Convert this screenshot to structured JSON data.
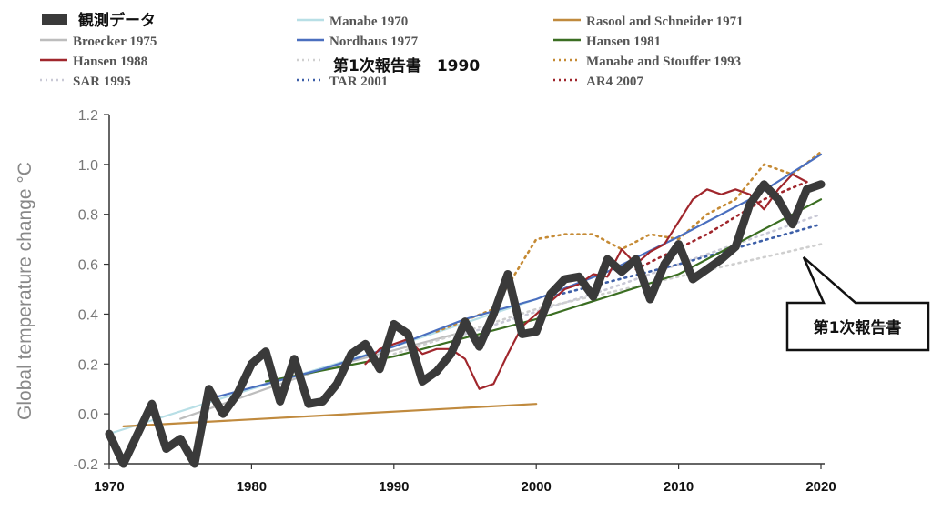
{
  "chart_data": {
    "type": "line",
    "ylabel": "Global temperature change °C",
    "xlim": [
      1970,
      2020
    ],
    "ylim": [
      -0.2,
      1.2
    ],
    "x_ticks": [
      "1970",
      "1980",
      "1990",
      "2000",
      "2010",
      "2020"
    ],
    "y_ticks": [
      "-0.2",
      "0.0",
      "0.2",
      "0.4",
      "0.6",
      "0.8",
      "1.0",
      "1.2"
    ],
    "callout": "第1次報告書",
    "series": [
      {
        "name": "観測データ",
        "color": "#3a3a3a",
        "style": "thick",
        "points": [
          [
            1970,
            -0.08
          ],
          [
            1971,
            -0.2
          ],
          [
            1972,
            -0.08
          ],
          [
            1973,
            0.04
          ],
          [
            1974,
            -0.14
          ],
          [
            1975,
            -0.1
          ],
          [
            1976,
            -0.2
          ],
          [
            1977,
            0.1
          ],
          [
            1978,
            0.0
          ],
          [
            1979,
            0.08
          ],
          [
            1980,
            0.2
          ],
          [
            1981,
            0.25
          ],
          [
            1982,
            0.05
          ],
          [
            1983,
            0.22
          ],
          [
            1984,
            0.04
          ],
          [
            1985,
            0.05
          ],
          [
            1986,
            0.12
          ],
          [
            1987,
            0.24
          ],
          [
            1988,
            0.28
          ],
          [
            1989,
            0.18
          ],
          [
            1990,
            0.36
          ],
          [
            1991,
            0.32
          ],
          [
            1992,
            0.13
          ],
          [
            1993,
            0.17
          ],
          [
            1994,
            0.24
          ],
          [
            1995,
            0.37
          ],
          [
            1996,
            0.27
          ],
          [
            1997,
            0.4
          ],
          [
            1998,
            0.56
          ],
          [
            1999,
            0.32
          ],
          [
            2000,
            0.33
          ],
          [
            2001,
            0.48
          ],
          [
            2002,
            0.54
          ],
          [
            2003,
            0.55
          ],
          [
            2004,
            0.47
          ],
          [
            2005,
            0.62
          ],
          [
            2006,
            0.57
          ],
          [
            2007,
            0.62
          ],
          [
            2008,
            0.46
          ],
          [
            2009,
            0.6
          ],
          [
            2010,
            0.68
          ],
          [
            2011,
            0.54
          ],
          [
            2012,
            0.58
          ],
          [
            2013,
            0.62
          ],
          [
            2014,
            0.67
          ],
          [
            2015,
            0.84
          ],
          [
            2016,
            0.92
          ],
          [
            2017,
            0.86
          ],
          [
            2018,
            0.76
          ],
          [
            2019,
            0.9
          ],
          [
            2020,
            0.92
          ]
        ]
      },
      {
        "name": "Broecker 1975",
        "color": "#bdbdbd",
        "style": "solid",
        "points": [
          [
            1975,
            -0.02
          ],
          [
            1985,
            0.18
          ],
          [
            1995,
            0.33
          ]
        ]
      },
      {
        "name": "Hansen 1988",
        "color": "#a0262c",
        "style": "solid",
        "points": [
          [
            1988,
            0.2
          ],
          [
            1989,
            0.26
          ],
          [
            1990,
            0.28
          ],
          [
            1991,
            0.3
          ],
          [
            1992,
            0.24
          ],
          [
            1993,
            0.26
          ],
          [
            1994,
            0.26
          ],
          [
            1995,
            0.22
          ],
          [
            1996,
            0.1
          ],
          [
            1997,
            0.12
          ],
          [
            1998,
            0.24
          ],
          [
            1999,
            0.35
          ],
          [
            2000,
            0.4
          ],
          [
            2001,
            0.45
          ],
          [
            2002,
            0.5
          ],
          [
            2003,
            0.52
          ],
          [
            2004,
            0.56
          ],
          [
            2005,
            0.55
          ],
          [
            2006,
            0.66
          ],
          [
            2007,
            0.6
          ],
          [
            2008,
            0.65
          ],
          [
            2009,
            0.68
          ],
          [
            2010,
            0.77
          ],
          [
            2011,
            0.86
          ],
          [
            2012,
            0.9
          ],
          [
            2013,
            0.88
          ],
          [
            2014,
            0.9
          ],
          [
            2015,
            0.88
          ],
          [
            2016,
            0.82
          ],
          [
            2017,
            0.9
          ],
          [
            2018,
            0.96
          ],
          [
            2019,
            0.93
          ]
        ]
      },
      {
        "name": "SAR 1995",
        "color": "#c9c9d6",
        "style": "dotted",
        "points": [
          [
            1995,
            0.32
          ],
          [
            2005,
            0.5
          ],
          [
            2020,
            0.8
          ]
        ]
      },
      {
        "name": "Manabe 1970",
        "color": "#b8dfe6",
        "style": "solid",
        "points": [
          [
            1970,
            -0.08
          ],
          [
            1980,
            0.1
          ],
          [
            1990,
            0.27
          ],
          [
            2000,
            0.46
          ]
        ]
      },
      {
        "name": "Nordhaus 1977",
        "color": "#4a6fbf",
        "style": "solid",
        "points": [
          [
            1977,
            0.06
          ],
          [
            1985,
            0.18
          ],
          [
            1990,
            0.27
          ],
          [
            1995,
            0.38
          ],
          [
            2000,
            0.46
          ],
          [
            2005,
            0.57
          ],
          [
            2010,
            0.71
          ],
          [
            2015,
            0.86
          ],
          [
            2020,
            1.04
          ]
        ]
      },
      {
        "name": "第1次報告書",
        "color": "#cfcfcf",
        "style": "dotted",
        "points": [
          [
            1990,
            0.24
          ],
          [
            2000,
            0.42
          ],
          [
            2010,
            0.55
          ],
          [
            2020,
            0.68
          ]
        ]
      },
      {
        "name": "TAR 2001",
        "color": "#3d5fa8",
        "style": "dotted",
        "points": [
          [
            2001,
            0.47
          ],
          [
            2010,
            0.6
          ],
          [
            2020,
            0.76
          ]
        ]
      },
      {
        "name": "Rasool and Schneider 1971",
        "color": "#c08a3e",
        "style": "solid",
        "points": [
          [
            1971,
            -0.05
          ],
          [
            2000,
            0.04
          ]
        ]
      },
      {
        "name": "Hansen 1981",
        "color": "#3b6e22",
        "style": "solid",
        "points": [
          [
            1981,
            0.13
          ],
          [
            1990,
            0.23
          ],
          [
            2000,
            0.38
          ],
          [
            2010,
            0.56
          ],
          [
            2020,
            0.86
          ]
        ]
      },
      {
        "name": "Manabe and Stouffer 1993",
        "color": "#c58a34",
        "style": "dotted",
        "points": [
          [
            1993,
            0.33
          ],
          [
            1997,
            0.42
          ],
          [
            2000,
            0.7
          ],
          [
            2002,
            0.72
          ],
          [
            2004,
            0.72
          ],
          [
            2006,
            0.66
          ],
          [
            2008,
            0.72
          ],
          [
            2010,
            0.7
          ],
          [
            2012,
            0.8
          ],
          [
            2014,
            0.86
          ],
          [
            2016,
            1.0
          ],
          [
            2018,
            0.96
          ],
          [
            2020,
            1.05
          ]
        ]
      },
      {
        "name": "AR4 2007",
        "color": "#a0262c",
        "style": "dotted",
        "points": [
          [
            2007,
            0.58
          ],
          [
            2012,
            0.72
          ],
          [
            2016,
            0.86
          ],
          [
            2019,
            0.93
          ]
        ]
      }
    ]
  },
  "legend": {
    "col1": [
      "観測データ",
      "Broecker 1975",
      "Hansen 1988",
      "SAR 1995"
    ],
    "col2": [
      "Manabe 1970",
      "Nordhaus 1977",
      "第1次報告書　1990",
      "TAR 2001"
    ],
    "col3": [
      "Rasool and Schneider 1971",
      "Hansen 1981",
      "Manabe and Stouffer 1993",
      "AR4 2007"
    ]
  }
}
